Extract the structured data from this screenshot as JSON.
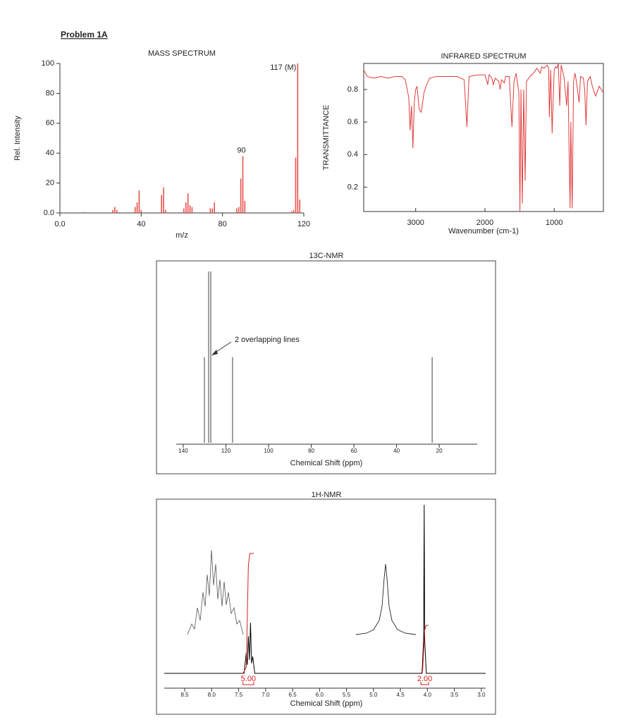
{
  "header": {
    "title": "Problem 1A"
  },
  "chart_data": [
    {
      "type": "bar",
      "title": "MASS SPECTRUM",
      "x_label": "m/z",
      "y_label": "Rel. Intensity",
      "color": "#e8514a",
      "x": [
        12,
        26,
        27,
        28,
        37,
        38,
        39,
        40,
        50,
        51,
        52,
        61,
        62,
        63,
        64,
        65,
        74,
        75,
        76,
        87,
        88,
        89,
        90,
        91,
        114,
        115,
        116,
        117,
        118
      ],
      "values": [
        0.5,
        2,
        4,
        2,
        4,
        7,
        15,
        2,
        12,
        17,
        2,
        3,
        7,
        13,
        5,
        4,
        3,
        3,
        7,
        3,
        4,
        23,
        38,
        8,
        1,
        2,
        37,
        100,
        9
      ],
      "xlim": [
        0,
        120
      ],
      "xticks": [
        {
          "value": 0,
          "label": "0.0"
        },
        40,
        80,
        120
      ],
      "ylim": [
        0,
        100
      ],
      "yticks": [
        {
          "value": 0,
          "label": "0.0"
        },
        20,
        40,
        60,
        80,
        100
      ],
      "annotations": [
        {
          "text": "117 (M)",
          "x": 117
        },
        {
          "text": "90",
          "x": 90
        }
      ]
    },
    {
      "type": "line",
      "title": "INFRARED SPECTRUM",
      "x_label": "Wavenumber (cm-1)",
      "y_label": "TRANSMITTANCE",
      "color": "#e03c3c",
      "x": [
        3750,
        3700,
        3600,
        3500,
        3400,
        3300,
        3200,
        3150,
        3100,
        3080,
        3060,
        3040,
        3020,
        3000,
        2980,
        2950,
        2920,
        2880,
        2850,
        2800,
        2700,
        2600,
        2500,
        2400,
        2300,
        2260,
        2230,
        2100,
        2000,
        1960,
        1940,
        1900,
        1880,
        1850,
        1800,
        1780,
        1760,
        1720,
        1700,
        1650,
        1610,
        1580,
        1550,
        1510,
        1495,
        1480,
        1460,
        1440,
        1420,
        1400,
        1350,
        1300,
        1250,
        1200,
        1180,
        1150,
        1100,
        1080,
        1070,
        1050,
        1030,
        1000,
        980,
        960,
        940,
        920,
        900,
        860,
        820,
        800,
        780,
        770,
        760,
        740,
        720,
        700,
        680,
        640,
        620,
        580,
        560,
        540,
        520,
        480,
        450,
        420,
        400,
        350,
        290
      ],
      "values": [
        0.92,
        0.88,
        0.87,
        0.88,
        0.87,
        0.88,
        0.88,
        0.86,
        0.75,
        0.55,
        0.7,
        0.44,
        0.72,
        0.8,
        0.82,
        0.68,
        0.66,
        0.78,
        0.82,
        0.87,
        0.88,
        0.88,
        0.88,
        0.88,
        0.86,
        0.57,
        0.88,
        0.89,
        0.89,
        0.83,
        0.89,
        0.87,
        0.83,
        0.87,
        0.85,
        0.8,
        0.86,
        0.84,
        0.88,
        0.88,
        0.57,
        0.85,
        0.9,
        0.78,
        0.05,
        0.8,
        0.1,
        0.8,
        0.24,
        0.85,
        0.88,
        0.9,
        0.93,
        0.9,
        0.94,
        0.93,
        0.95,
        0.93,
        0.63,
        0.92,
        0.53,
        0.92,
        0.94,
        0.93,
        0.96,
        0.7,
        0.95,
        0.88,
        0.7,
        0.85,
        0.3,
        0.07,
        0.6,
        0.07,
        0.85,
        0.9,
        0.85,
        0.72,
        0.88,
        0.87,
        0.8,
        0.58,
        0.85,
        0.88,
        0.82,
        0.78,
        0.76,
        0.82,
        0.78
      ],
      "xlim": [
        3750,
        290
      ],
      "xticks": [
        3000,
        2000,
        1000
      ],
      "ylim": [
        0.05,
        0.96
      ],
      "yticks": [
        0.2,
        0.4,
        0.6,
        0.8
      ]
    },
    {
      "type": "bar",
      "title": "13C-NMR",
      "x_label": "Chemical Shift (ppm)",
      "color": "#888888",
      "x": [
        130.1,
        128.1,
        127.1,
        116.9,
        23.3
      ],
      "values": [
        50,
        100,
        100,
        50,
        50
      ],
      "xlim": [
        143.3,
        2.2
      ],
      "xticks": [
        140,
        120,
        100,
        80,
        60,
        40,
        20
      ],
      "annotations": [
        {
          "text": "2 overlapping lines"
        }
      ]
    },
    {
      "type": "line",
      "title": "1H-NMR",
      "x_label": "Chemical Shift (ppm)",
      "color": "#000000",
      "x": [
        8.88,
        7.4,
        7.36,
        7.34,
        7.32,
        7.3,
        7.28,
        7.26,
        7.24,
        7.2,
        4.1,
        4.07,
        4.06,
        4.05,
        4.02,
        2.92
      ],
      "values": [
        0,
        0,
        12,
        5,
        22,
        8,
        30,
        6,
        10,
        0,
        0,
        20,
        100,
        20,
        0,
        0
      ],
      "xlim": [
        8.88,
        2.92
      ],
      "xticks": [
        8.5,
        {
          "value": 8,
          "label": "8.0"
        },
        7.5,
        {
          "value": 7,
          "label": "7.0"
        },
        6.5,
        {
          "value": 6,
          "label": "6.0"
        },
        5.5,
        {
          "value": 5,
          "label": "5.0"
        },
        4.5,
        {
          "value": 4,
          "label": "4.0"
        },
        3.5,
        {
          "value": 3,
          "label": "3.0"
        }
      ],
      "integral_color": "#d62020",
      "integrals": [
        {
          "value": 5,
          "label": "5.00",
          "range": [
            7.42,
            7.22
          ]
        },
        {
          "value": 2,
          "label": "2.00",
          "range": [
            4.12,
            3.98
          ]
        }
      ]
    }
  ]
}
